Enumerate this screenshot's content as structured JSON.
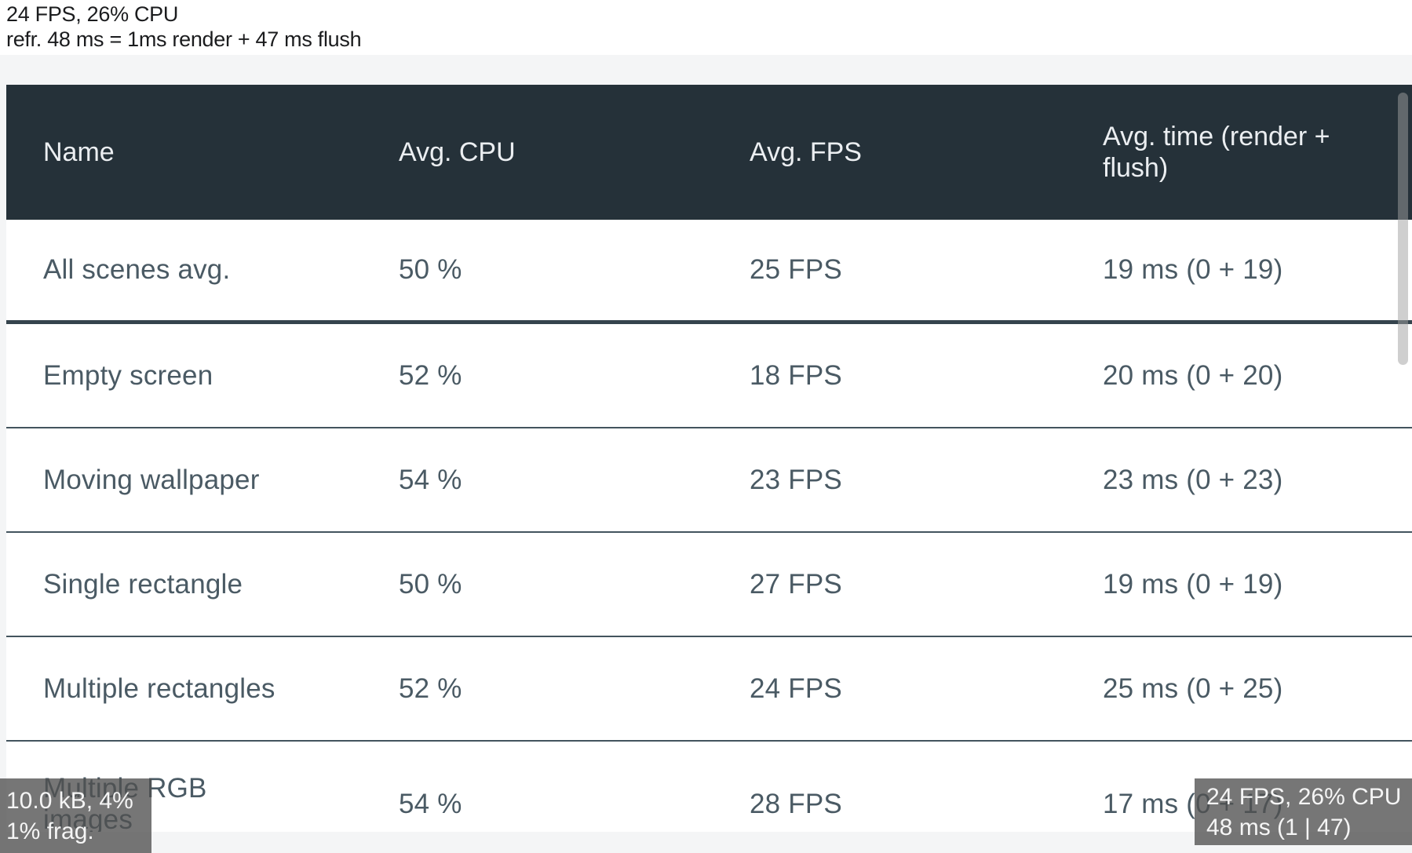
{
  "stats_overlay_top": {
    "line1": "24 FPS, 26% CPU",
    "line2": "refr. 48 ms = 1ms render + 47 ms flush"
  },
  "table": {
    "columns": [
      "Name",
      "Avg. CPU",
      "Avg. FPS",
      "Avg. time (render + flush)"
    ],
    "rows": [
      {
        "name": "All scenes avg.",
        "avg_cpu": "50 %",
        "avg_fps": "25 FPS",
        "avg_time": "19 ms (0 + 19)"
      },
      {
        "name": "Empty screen",
        "avg_cpu": "52 %",
        "avg_fps": "18 FPS",
        "avg_time": "20 ms (0 + 20)"
      },
      {
        "name": "Moving wallpaper",
        "avg_cpu": "54 %",
        "avg_fps": "23 FPS",
        "avg_time": "23 ms (0 + 23)"
      },
      {
        "name": "Single rectangle",
        "avg_cpu": "50 %",
        "avg_fps": "27 FPS",
        "avg_time": "19 ms (0 + 19)"
      },
      {
        "name": "Multiple rectangles",
        "avg_cpu": "52 %",
        "avg_fps": "24 FPS",
        "avg_time": "25 ms (0 + 25)"
      },
      {
        "name": "Multiple RGB images",
        "avg_cpu": "54 %",
        "avg_fps": "28 FPS",
        "avg_time": "17 ms (0 + 17)"
      }
    ]
  },
  "memory_overlay": {
    "line1": "10.0 kB, 4%",
    "line2": "1% frag."
  },
  "perf_overlay": {
    "line1": "24 FPS, 26% CPU",
    "line2": "48 ms (1 | 47)"
  },
  "colors": {
    "header_bg": "#253139",
    "header_text": "#ebeef1",
    "row_text": "#4a5a64",
    "divider_thick": "#35444d",
    "divider_thin": "#43545e",
    "page_bg": "#f4f5f6",
    "overlay_bg": "#505050",
    "overlay_text": "#f5f5f5"
  }
}
